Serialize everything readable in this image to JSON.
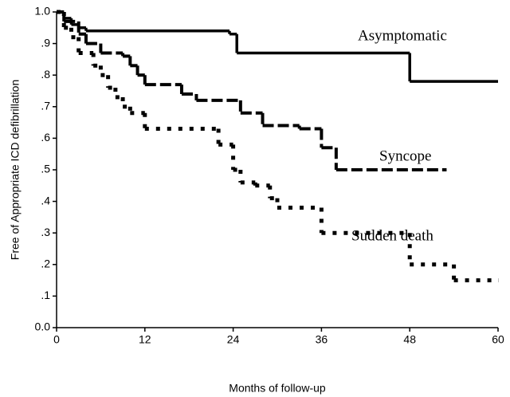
{
  "chart_data": {
    "type": "line",
    "step": "post",
    "xlabel": "Months of follow-up",
    "ylabel": "Free of Appropriate ICD defibrillation",
    "xlim": [
      0,
      60
    ],
    "xticks": [
      0,
      12,
      24,
      36,
      48,
      60
    ],
    "ylim": [
      0,
      1
    ],
    "yticks": [
      {
        "value": 0,
        "label": "0.0"
      },
      {
        "value": 0.1,
        "label": ".1"
      },
      {
        "value": 0.2,
        "label": ".2"
      },
      {
        "value": 0.3,
        "label": ".3"
      },
      {
        "value": 0.4,
        "label": ".4"
      },
      {
        "value": 0.5,
        "label": ".5"
      },
      {
        "value": 0.6,
        "label": ".6"
      },
      {
        "value": 0.7,
        "label": ".7"
      },
      {
        "value": 0.8,
        "label": ".8"
      },
      {
        "value": 0.9,
        "label": ".9"
      },
      {
        "value": 1,
        "label": "1.0"
      }
    ],
    "series": [
      {
        "name": "Asymptomatic",
        "color": "#000000",
        "line_style": "solid",
        "x": [
          0,
          1,
          2,
          3,
          4,
          23.5,
          24.5,
          48,
          60
        ],
        "values": [
          1.0,
          0.98,
          0.96,
          0.95,
          0.94,
          0.93,
          0.87,
          0.78,
          0.78
        ]
      },
      {
        "name": "Syncope",
        "color": "#000000",
        "line_style": "dashed",
        "x": [
          0,
          1,
          3,
          4,
          6,
          9,
          10,
          11,
          12,
          17,
          19,
          25,
          28,
          33,
          36,
          38,
          53
        ],
        "values": [
          1.0,
          0.97,
          0.93,
          0.9,
          0.87,
          0.86,
          0.83,
          0.8,
          0.77,
          0.74,
          0.72,
          0.68,
          0.64,
          0.63,
          0.57,
          0.5,
          0.5
        ]
      },
      {
        "name": "Sudden death",
        "color": "#000000",
        "line_style": "dotted",
        "x": [
          0,
          1,
          2,
          3,
          5,
          6,
          7,
          8,
          9,
          10,
          12,
          22,
          24,
          25,
          27,
          29,
          30,
          36,
          48,
          54,
          60
        ],
        "values": [
          1.0,
          0.95,
          0.92,
          0.87,
          0.83,
          0.8,
          0.76,
          0.73,
          0.7,
          0.68,
          0.63,
          0.58,
          0.5,
          0.46,
          0.45,
          0.41,
          0.38,
          0.3,
          0.2,
          0.15,
          0.15
        ]
      }
    ]
  }
}
